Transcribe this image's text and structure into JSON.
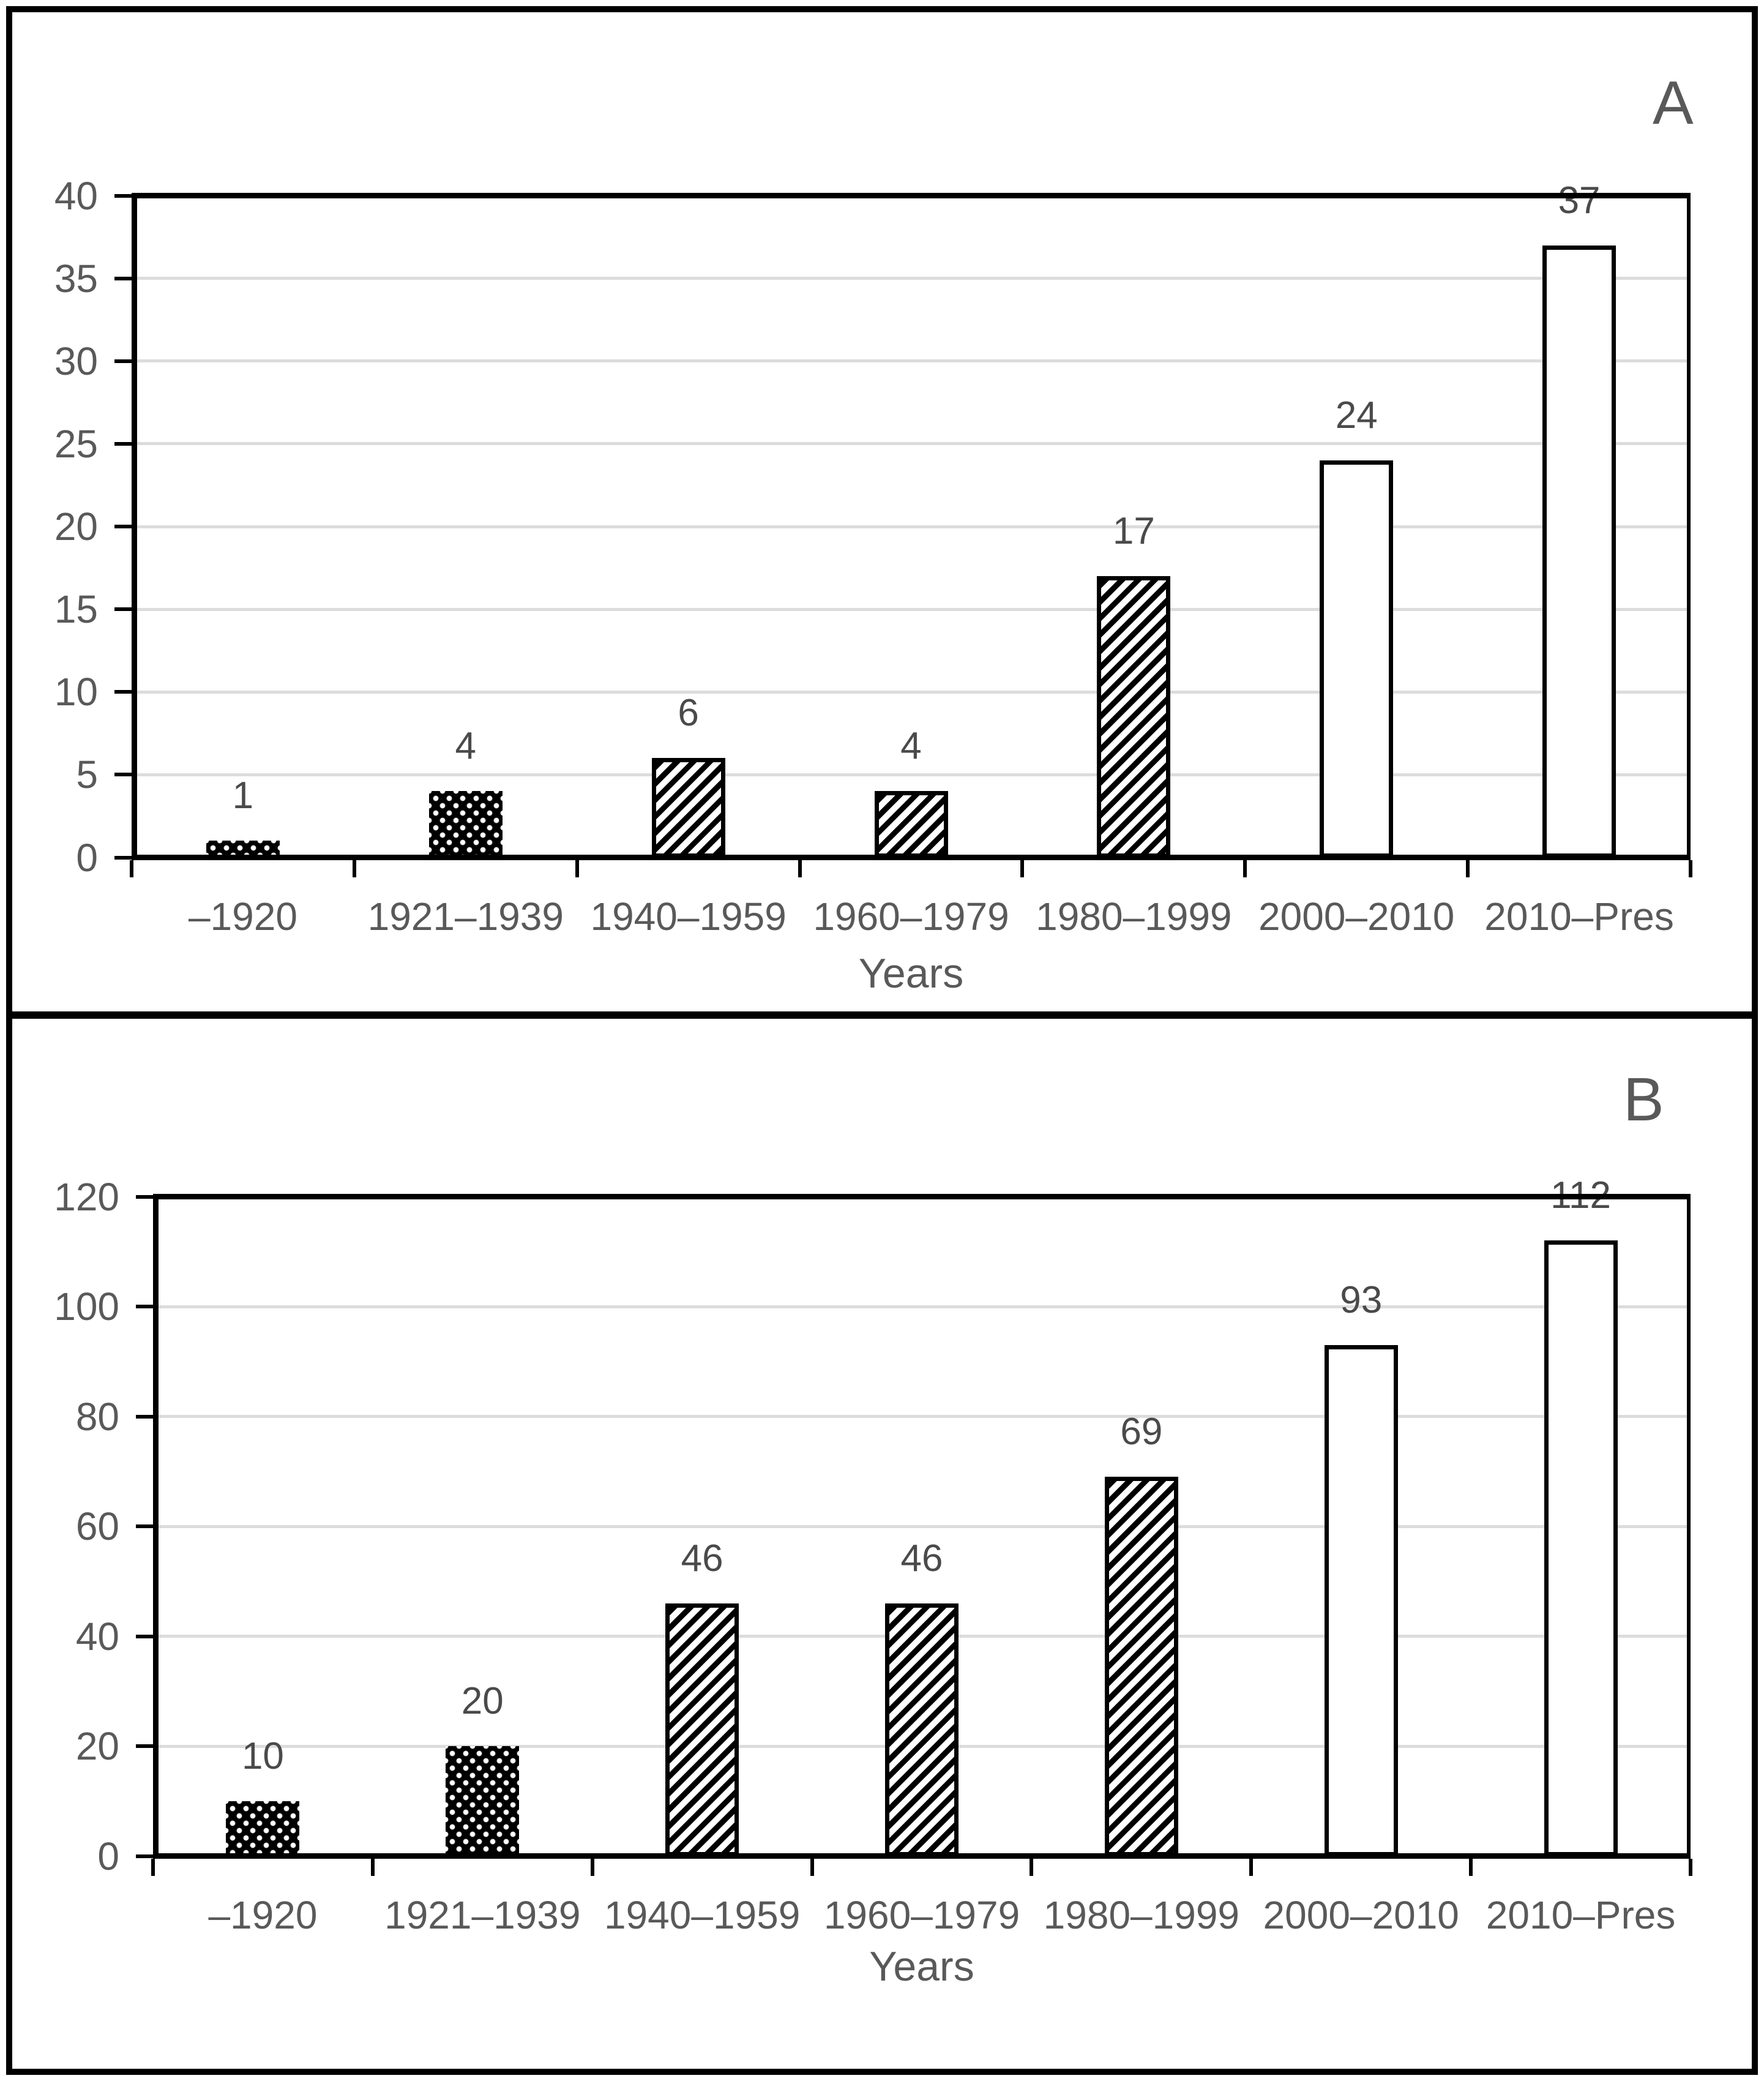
{
  "figure": {
    "background": "#ffffff",
    "frame_color": "#000000"
  },
  "colors": {
    "axis_line": "#000000",
    "gridline": "#dcdcdc",
    "axis_text": "#595959",
    "data_label_text": "#4a4a4a",
    "panel_letter": "#595959",
    "bar_dark_fill": "#000000",
    "bar_dot": "#ffffff",
    "bar_light_fill": "#ffffff",
    "bar_outline": "#000000"
  },
  "chart_data": [
    {
      "type": "bar",
      "panel_label": "A",
      "title": "",
      "categories": [
        "–1920",
        "1921–1939",
        "1940–1959",
        "1960–1979",
        "1980–1999",
        "2000–2010",
        "2010–Pres"
      ],
      "values": [
        1,
        4,
        6,
        4,
        17,
        24,
        37
      ],
      "data_labels": [
        "1",
        "4",
        "6",
        "4",
        "17",
        "24",
        "37"
      ],
      "bar_patterns": [
        "dots",
        "dots",
        "hatch",
        "hatch",
        "hatch",
        "plain",
        "plain"
      ],
      "xlabel": "Years",
      "ylabel": "",
      "ylim": [
        0,
        40
      ],
      "ytick_step": 5,
      "ytick_labels": [
        "0",
        "5",
        "10",
        "15",
        "20",
        "25",
        "30",
        "35",
        "40"
      ],
      "grid": true,
      "legend": "none"
    },
    {
      "type": "bar",
      "panel_label": "B",
      "title": "",
      "categories": [
        "–1920",
        "1921–1939",
        "1940–1959",
        "1960–1979",
        "1980–1999",
        "2000–2010",
        "2010–Pres"
      ],
      "values": [
        10,
        20,
        46,
        46,
        69,
        93,
        112
      ],
      "data_labels": [
        "10",
        "20",
        "46",
        "46",
        "69",
        "93",
        "112"
      ],
      "bar_patterns": [
        "dots",
        "dots",
        "hatch",
        "hatch",
        "hatch",
        "plain",
        "plain"
      ],
      "xlabel": "Years",
      "ylabel": "",
      "ylim": [
        0,
        120
      ],
      "ytick_step": 20,
      "ytick_labels": [
        "0",
        "20",
        "40",
        "60",
        "80",
        "100",
        "120"
      ],
      "grid": true,
      "legend": "none"
    }
  ]
}
